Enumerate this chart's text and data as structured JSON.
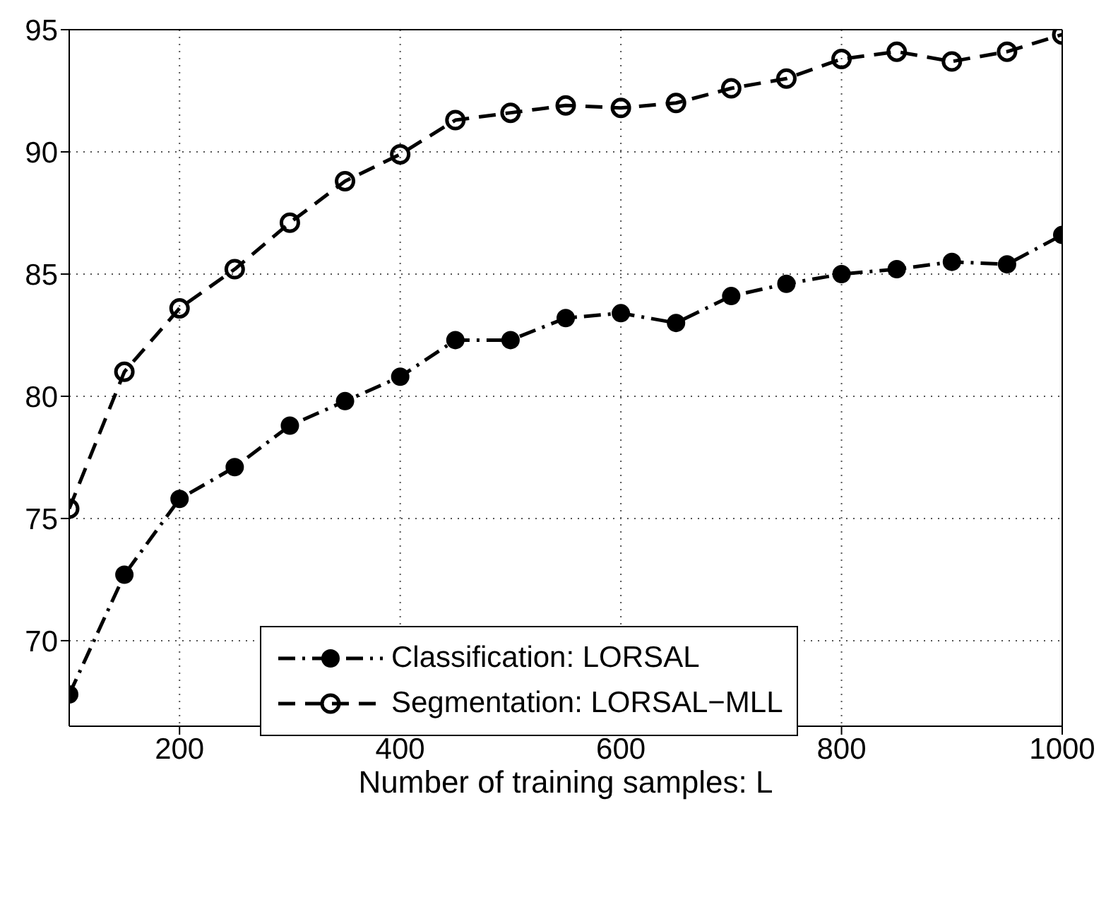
{
  "chart_data": {
    "type": "line",
    "xlabel": "Number of training samples: L",
    "x": [
      100,
      150,
      200,
      250,
      300,
      350,
      400,
      450,
      500,
      550,
      600,
      650,
      700,
      750,
      800,
      850,
      900,
      950,
      1000
    ],
    "series": [
      {
        "name": "Classification: LORSAL",
        "color": "#000000",
        "line_style": "dashdot",
        "marker": "circle",
        "values": [
          67.8,
          72.7,
          75.8,
          77.1,
          78.8,
          79.8,
          80.8,
          82.3,
          82.3,
          83.2,
          83.4,
          83.0,
          84.1,
          84.6,
          85.0,
          85.2,
          85.5,
          85.4,
          86.6
        ]
      },
      {
        "name": "Segmentation: LORSAL−MLL",
        "color": "#000000",
        "line_style": "dashed",
        "marker": "open circle",
        "values": [
          75.4,
          81.0,
          83.6,
          85.2,
          87.1,
          88.8,
          89.9,
          91.3,
          91.6,
          91.9,
          91.8,
          92.0,
          92.6,
          93.0,
          93.8,
          94.1,
          93.7,
          94.1,
          94.8
        ]
      }
    ],
    "xlim": [
      100,
      1000
    ],
    "xticks": [
      200,
      400,
      600,
      800,
      1000
    ],
    "ylim": [
      66.5,
      95
    ],
    "yticks": [
      70,
      75,
      80,
      85,
      90,
      95
    ],
    "grid": true,
    "legend": "bottom"
  }
}
